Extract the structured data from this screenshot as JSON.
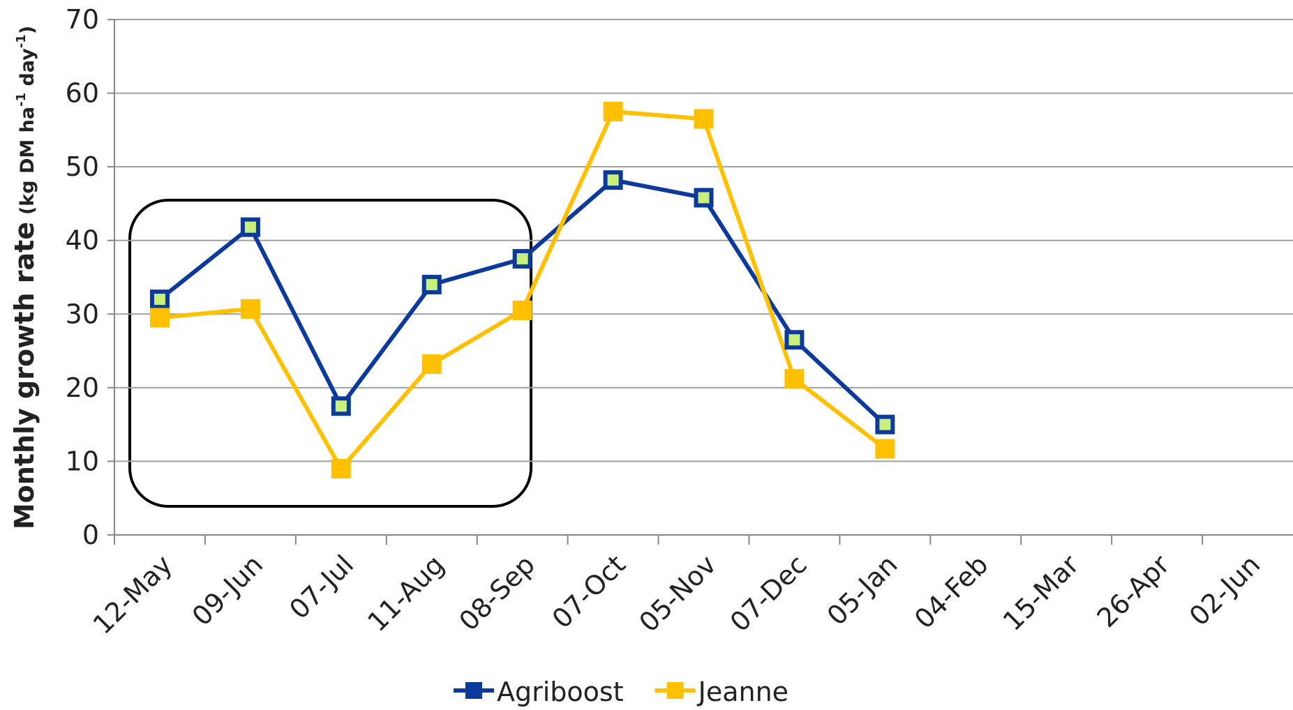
{
  "chart_data": {
    "type": "line",
    "y_label": "Monthly growth rate",
    "y_label_units": [
      "(kg DM ha",
      "-1",
      " day",
      "-1",
      ")"
    ],
    "categories": [
      "12-May",
      "09-Jun",
      "07-Jul",
      "11-Aug",
      "08-Sep",
      "07-Oct",
      "05-Nov",
      "07-Dec",
      "05-Jan",
      "04-Feb",
      "15-Mar",
      "26-Apr",
      "02-Jun"
    ],
    "series": [
      {
        "name": "Agriboost",
        "color": "#0b3a9c",
        "marker_fill": "#c8f07a",
        "values": [
          32,
          41.8,
          17.5,
          34,
          37.5,
          48.2,
          45.8,
          26.5,
          15,
          null,
          null,
          null,
          null
        ]
      },
      {
        "name": "Jeanne",
        "color": "#ffc000",
        "marker_fill": "#ffc000",
        "values": [
          29.5,
          30.7,
          9,
          23.2,
          30.5,
          57.5,
          56.5,
          21.2,
          11.7,
          null,
          null,
          null,
          null
        ]
      }
    ],
    "ylim": [
      0,
      70
    ],
    "yticks": [
      0,
      10,
      20,
      30,
      40,
      50,
      60,
      70
    ],
    "grid": true,
    "legend": "bottom"
  }
}
